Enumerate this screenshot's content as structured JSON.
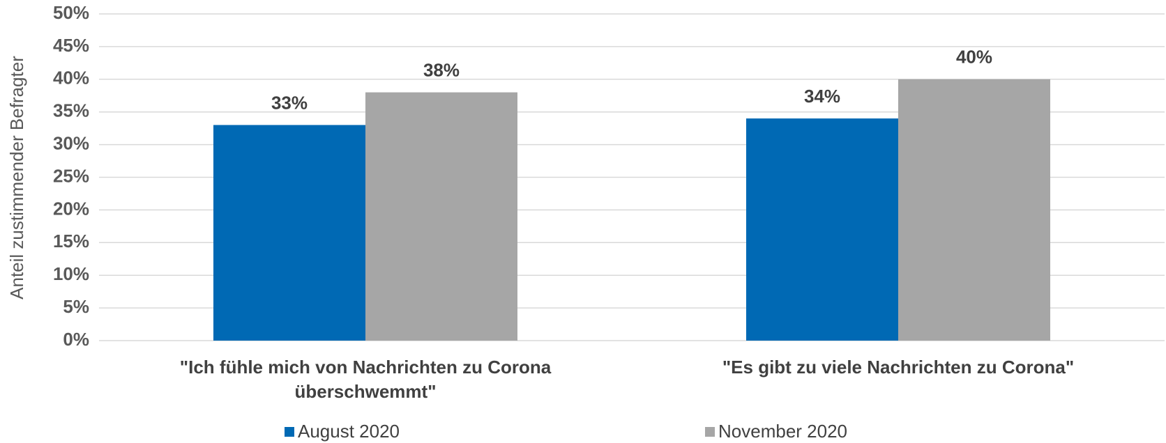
{
  "chart_data": {
    "type": "bar",
    "y_axis_label": "Anteil zustimmender Befragter",
    "categories": [
      "\"Ich fühle mich von Nachrichten zu Corona überschwemmt\"",
      "\"Es gibt zu viele Nachrichten zu Corona\""
    ],
    "series": [
      {
        "name": "August 2020",
        "color": "#0069b4",
        "values": [
          33,
          34
        ],
        "value_labels": [
          "33%",
          "34%"
        ]
      },
      {
        "name": "November 2020",
        "color": "#a6a6a6",
        "values": [
          38,
          40
        ],
        "value_labels": [
          "38%",
          "40%"
        ]
      }
    ],
    "ylim": [
      0,
      50
    ],
    "yticks": [
      {
        "value": 0,
        "label": "0%"
      },
      {
        "value": 5,
        "label": "5%"
      },
      {
        "value": 10,
        "label": "10%"
      },
      {
        "value": 15,
        "label": "15%"
      },
      {
        "value": 20,
        "label": "20%"
      },
      {
        "value": 25,
        "label": "25%"
      },
      {
        "value": 30,
        "label": "30%"
      },
      {
        "value": 35,
        "label": "35%"
      },
      {
        "value": 40,
        "label": "40%"
      },
      {
        "value": 45,
        "label": "45%"
      },
      {
        "value": 50,
        "label": "50%"
      }
    ],
    "grid": true
  }
}
